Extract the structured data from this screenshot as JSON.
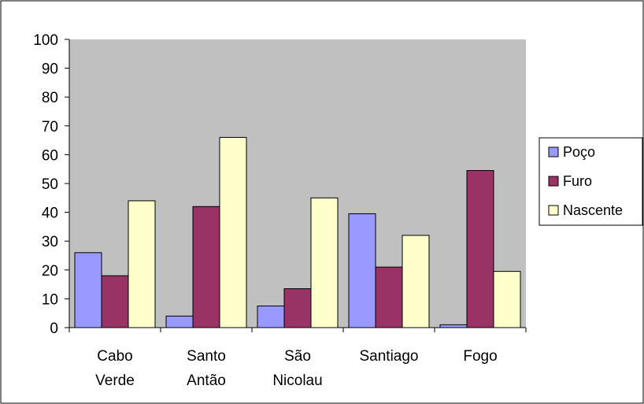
{
  "chart_data": {
    "type": "bar",
    "categories": [
      [
        "Cabo",
        "Verde"
      ],
      [
        "Santo",
        "Antão"
      ],
      [
        "São",
        "Nicolau"
      ],
      [
        "Santiago"
      ],
      [
        "Fogo"
      ]
    ],
    "series": [
      {
        "name": "Poço",
        "values": [
          26,
          4,
          7.5,
          39.5,
          1
        ],
        "color": "#9999ff"
      },
      {
        "name": "Furo",
        "values": [
          18,
          42,
          13.5,
          21,
          54.5
        ],
        "color": "#993366"
      },
      {
        "name": "Nascente",
        "values": [
          44,
          66,
          45,
          32,
          19.5
        ],
        "color": "#ffffcc"
      }
    ],
    "yticks": [
      "0",
      "10",
      "20",
      "30",
      "40",
      "50",
      "60",
      "70",
      "80",
      "90",
      "100"
    ],
    "ylim": [
      0,
      100
    ],
    "plot_background": "#c0c0c0",
    "legend_position": "right",
    "grid": false
  }
}
